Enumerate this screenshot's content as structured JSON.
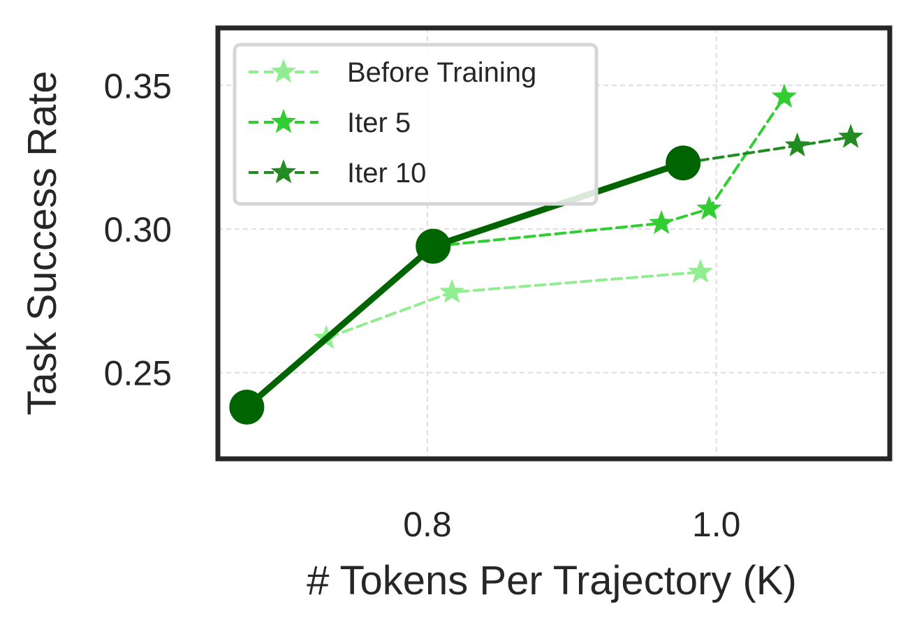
{
  "chart_data": {
    "type": "line",
    "title": "",
    "xlabel": "# Tokens Per Trajectory (K)",
    "ylabel": "Task Success Rate",
    "xlim": [
      0.655,
      1.12
    ],
    "ylim": [
      0.22,
      0.37
    ],
    "xticks": [
      0.8,
      1.0
    ],
    "xtick_labels": [
      "0.8",
      "1.0"
    ],
    "yticks": [
      0.25,
      0.3,
      0.35
    ],
    "ytick_labels": [
      "0.25",
      "0.30",
      "0.35"
    ],
    "grid": true,
    "legend_position": "top-left",
    "series": [
      {
        "name": "Before Training",
        "color": "#90ee90",
        "style": "dashed",
        "marker": "star",
        "x": [
          0.675,
          0.73,
          0.817,
          0.989
        ],
        "y": [
          0.238,
          0.262,
          0.278,
          0.285
        ]
      },
      {
        "name": "Iter 5",
        "color": "#32cd32",
        "style": "dashed",
        "marker": "star",
        "x": [
          0.804,
          0.962,
          0.995,
          1.047
        ],
        "y": [
          0.294,
          0.302,
          0.307,
          0.346
        ]
      },
      {
        "name": "Iter 10",
        "color": "#228b22",
        "style": "dashed",
        "marker": "star",
        "x": [
          0.977,
          1.056,
          1.093
        ],
        "y": [
          0.323,
          0.329,
          0.332
        ]
      },
      {
        "color": "#006400",
        "style": "solid",
        "marker": "circle",
        "x": [
          0.675,
          0.804,
          0.977
        ],
        "y": [
          0.238,
          0.294,
          0.323
        ]
      }
    ]
  }
}
